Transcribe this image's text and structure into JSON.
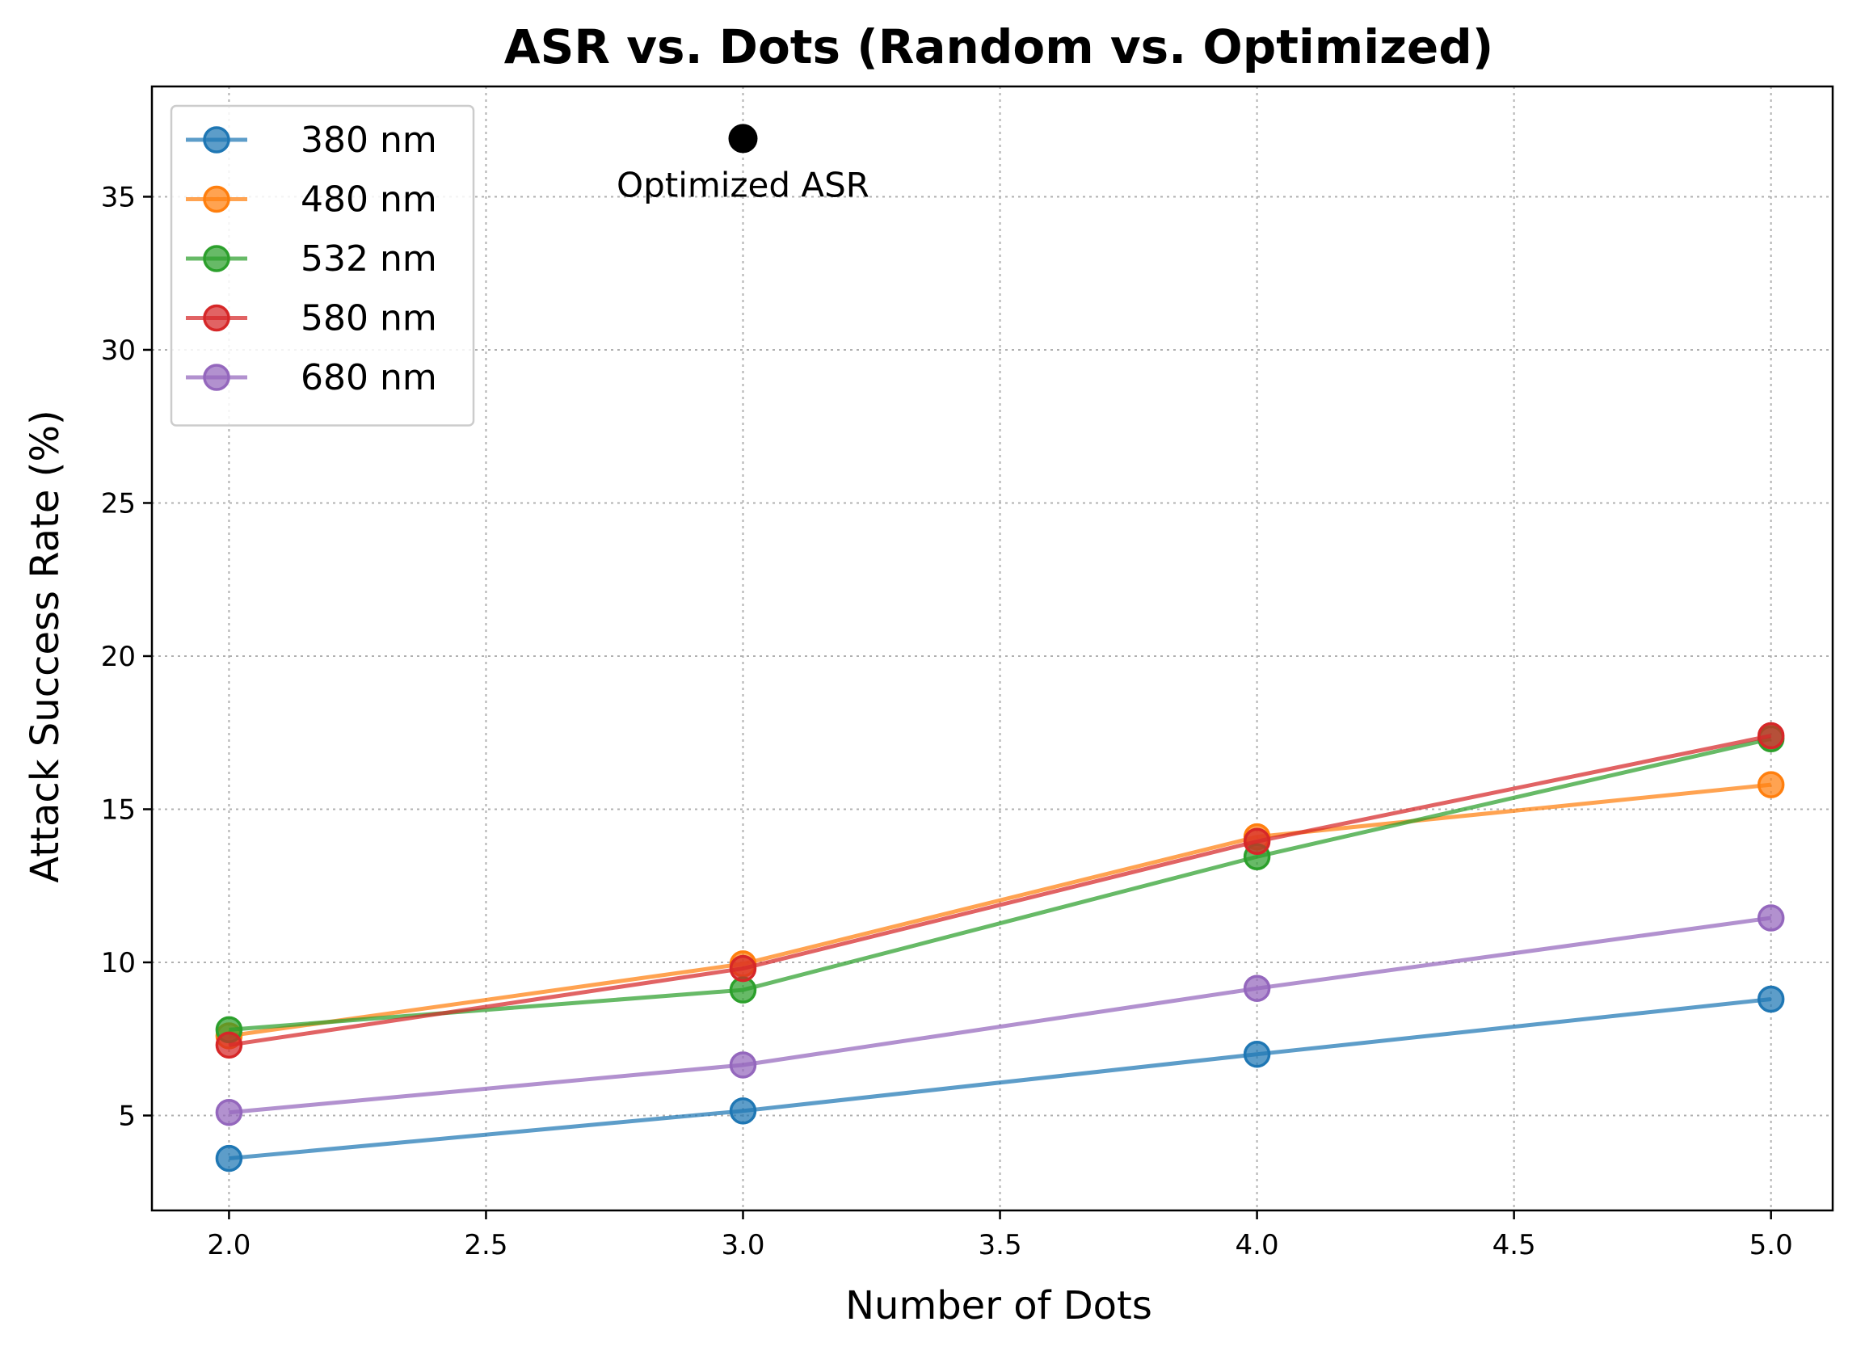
{
  "chart_data": {
    "type": "line",
    "title": "ASR vs. Dots (Random vs. Optimized)",
    "xlabel": "Number of Dots",
    "ylabel": "Attack Success Rate (%)",
    "xlim": [
      1.85,
      5.12
    ],
    "ylim": [
      1.9,
      38.6
    ],
    "xticks": [
      "2.0",
      "2.5",
      "3.0",
      "3.5",
      "4.0",
      "4.5",
      "5.0"
    ],
    "yticks": [
      "5",
      "10",
      "15",
      "20",
      "25",
      "30",
      "35"
    ],
    "grid": true,
    "legend_position": "top-left",
    "x": [
      2.0,
      3.0,
      4.0,
      5.0
    ],
    "series": [
      {
        "name": "380 nm",
        "color": "#1f77b4",
        "values": [
          3.6,
          5.15,
          7.0,
          8.8
        ]
      },
      {
        "name": "480 nm",
        "color": "#ff7f0e",
        "values": [
          7.6,
          9.95,
          14.1,
          15.8
        ]
      },
      {
        "name": "532 nm",
        "color": "#2ca02c",
        "values": [
          7.8,
          9.1,
          13.45,
          17.3
        ]
      },
      {
        "name": "580 nm",
        "color": "#d62728",
        "values": [
          7.3,
          9.8,
          13.95,
          17.4
        ]
      },
      {
        "name": "680 nm",
        "color": "#9467bd",
        "values": [
          5.1,
          6.65,
          9.15,
          11.45
        ]
      }
    ],
    "annotation": {
      "label": "Optimized ASR",
      "x": 3.0,
      "y": 36.9,
      "color": "#000000"
    }
  }
}
